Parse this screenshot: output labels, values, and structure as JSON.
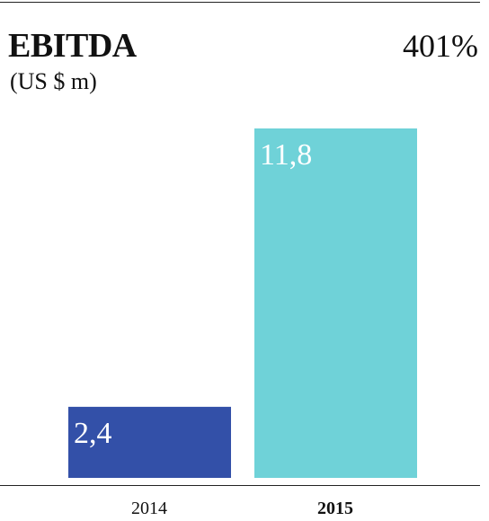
{
  "header": {
    "title": "EBITDA",
    "unit": "(US $ m)",
    "growth": "401%"
  },
  "chart_data": {
    "type": "bar",
    "title": "EBITDA",
    "subtitle": "(US $ m)",
    "categories": [
      "2014",
      "2015"
    ],
    "values": [
      2.4,
      11.8
    ],
    "value_labels": [
      "2,4",
      "11,8"
    ],
    "colors": [
      "#3350a8",
      "#6fd2d8"
    ],
    "bold_category": "2015",
    "annotation": "401%",
    "ylim": [
      0,
      12
    ],
    "grid": false,
    "legend": "none"
  }
}
